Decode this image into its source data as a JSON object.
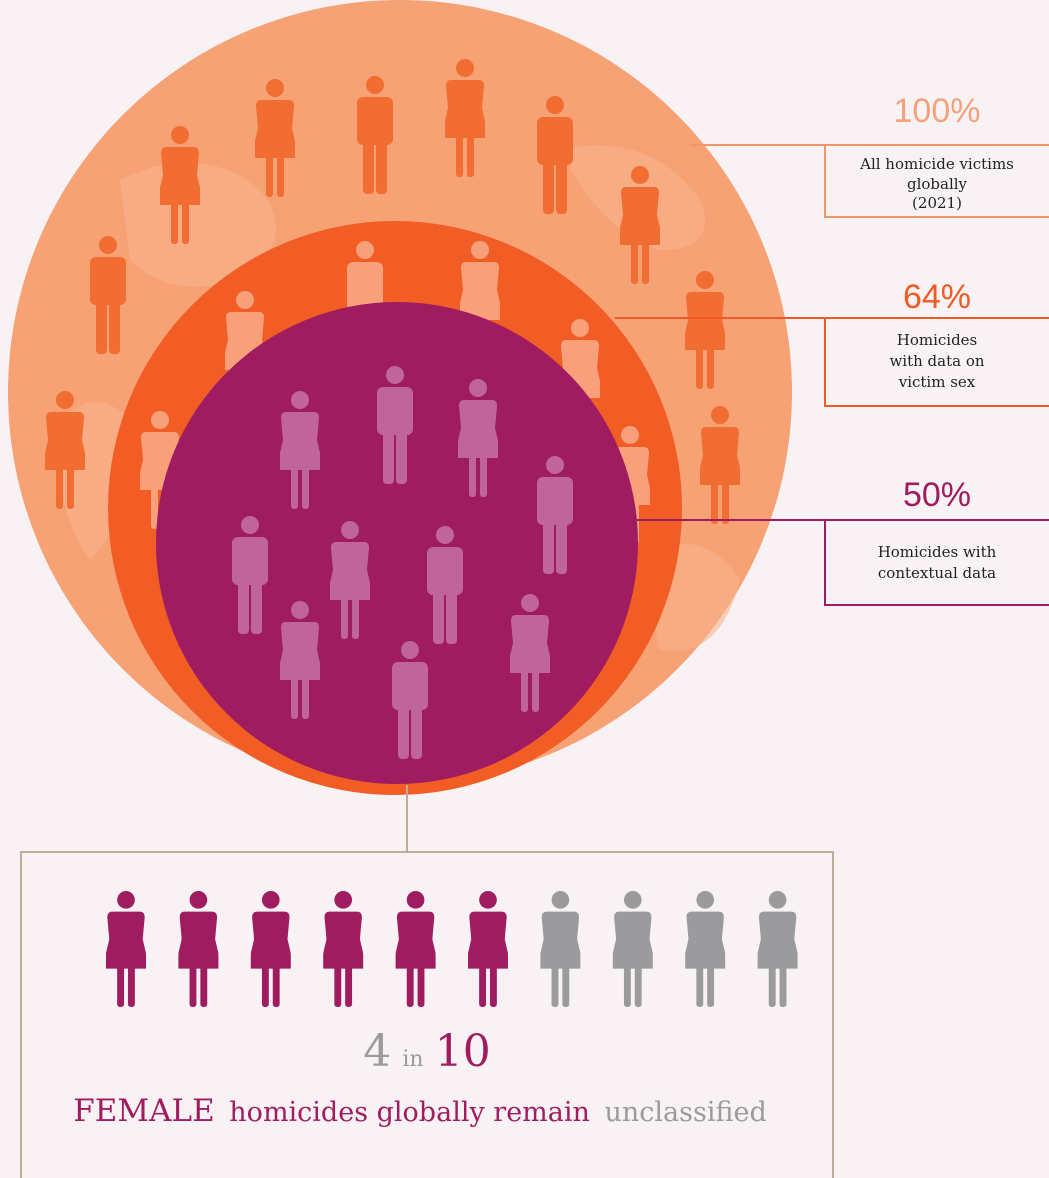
{
  "levels": [
    {
      "percent": "100%",
      "lines": [
        "All homicide victims",
        "globally",
        "(2021)"
      ]
    },
    {
      "percent": "64%",
      "lines": [
        "Homicides",
        "with data on",
        "victim sex"
      ]
    },
    {
      "percent": "50%",
      "lines": [
        "Homicides with",
        "contextual data"
      ]
    }
  ],
  "summary": {
    "count": "4",
    "connector": "in",
    "total": "10",
    "emphasis": "FEMALE",
    "middle": "homicides globally remain",
    "end": "unclassified"
  }
}
